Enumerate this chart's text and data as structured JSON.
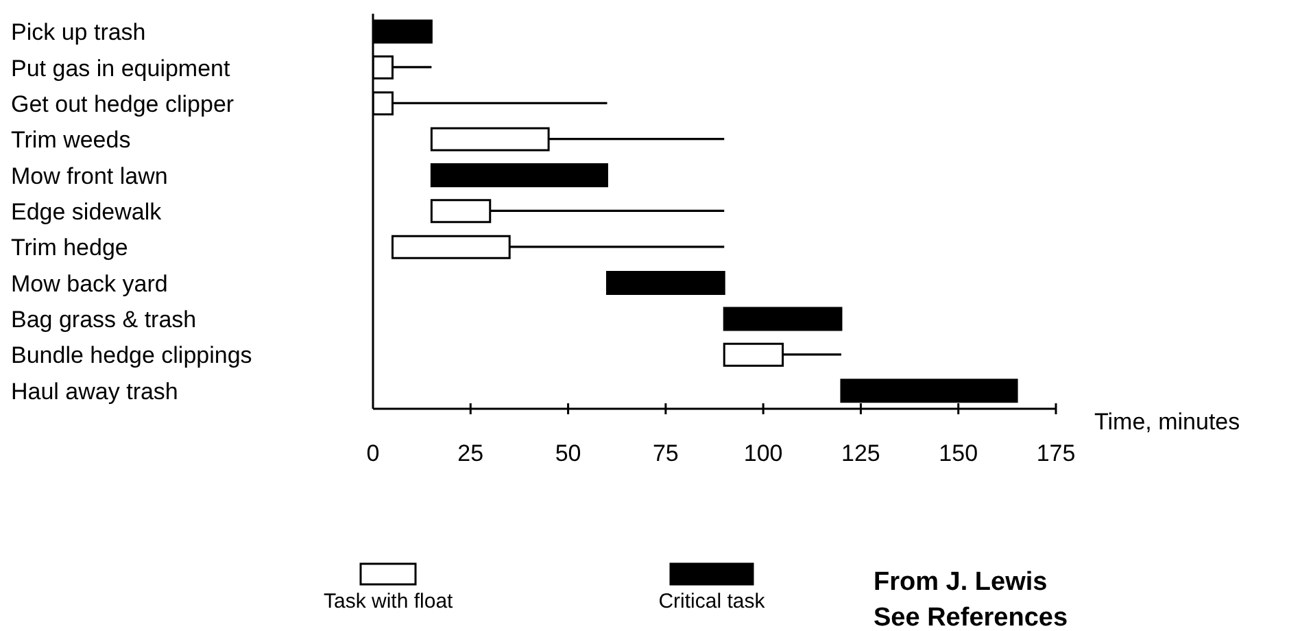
{
  "chart_data": {
    "type": "bar",
    "orientation": "horizontal",
    "xlabel": "Time, minutes",
    "categories": [
      "Pick up trash",
      "Put gas in equipment",
      "Get out hedge clipper",
      "Trim weeds",
      "Mow front lawn",
      "Edge sidewalk",
      "Trim hedge",
      "Mow back yard",
      "Bag grass & trash",
      "Bundle hedge clippings",
      "Haul away trash"
    ],
    "series": [
      {
        "name": "Task with float",
        "color": "#ffffff",
        "values": [
          null,
          5,
          5,
          30,
          null,
          15,
          30,
          null,
          null,
          15,
          null
        ],
        "base": [
          null,
          0,
          0,
          15,
          null,
          15,
          5,
          null,
          null,
          90,
          null
        ]
      },
      {
        "name": "Critical task",
        "color": "#000000",
        "values": [
          15,
          null,
          null,
          null,
          45,
          null,
          null,
          30,
          30,
          null,
          45
        ],
        "base": [
          0,
          null,
          null,
          null,
          15,
          null,
          null,
          60,
          90,
          null,
          120
        ]
      },
      {
        "type": "bar",
        "color": "#000000",
        "values": [
          null,
          10,
          55,
          45,
          null,
          60,
          55,
          null,
          null,
          15,
          null
        ],
        "base": [
          null,
          5,
          5,
          45,
          null,
          30,
          35,
          null,
          null,
          105,
          null
        ]
      }
    ],
    "xlim": [
      0,
      175
    ],
    "xticks": [
      0,
      25,
      50,
      75,
      100,
      125,
      150,
      175
    ],
    "grid": false,
    "legend": "bottom",
    "annotations": [
      "From J. Lewis",
      "See References"
    ]
  }
}
